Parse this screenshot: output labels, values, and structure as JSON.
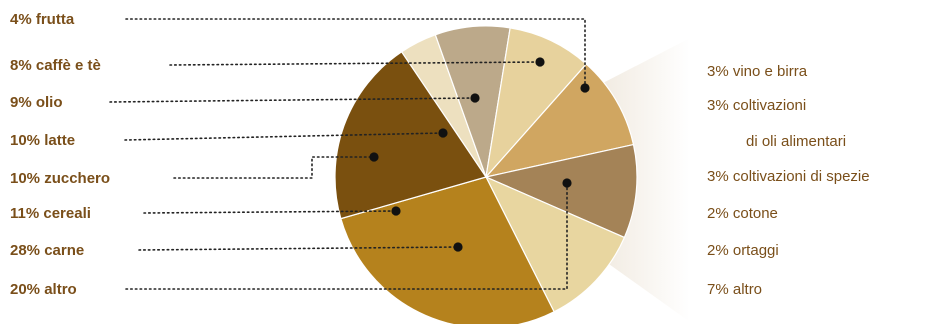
{
  "chart_data": {
    "type": "pie",
    "title": "",
    "slices": [
      {
        "label": "4% frutta",
        "value": 4,
        "color": "#ede0bf"
      },
      {
        "label": "8% caffè e tè",
        "value": 8,
        "color": "#bca98a"
      },
      {
        "label": "9% olio",
        "value": 9,
        "color": "#e7d29d"
      },
      {
        "label": "10% latte",
        "value": 10,
        "color": "#d0a661"
      },
      {
        "label": "10% zucchero",
        "value": 10,
        "color": "#a48357"
      },
      {
        "label": "11% cereali",
        "value": 11,
        "color": "#e8d6a0"
      },
      {
        "label": "28% carne",
        "value": 28,
        "color": "#b5821d"
      },
      {
        "label": "20% altro",
        "value": 20,
        "color": "#7a500f"
      }
    ],
    "exploded_slice": "20% altro",
    "breakdown_of_altro": [
      {
        "lines": [
          "3% vino e birra"
        ],
        "value": 3
      },
      {
        "lines": [
          "3% coltivazioni",
          "di oli alimentari"
        ],
        "value": 3
      },
      {
        "lines": [
          "3% coltivazioni di spezie"
        ],
        "value": 3
      },
      {
        "lines": [
          "2% cotone"
        ],
        "value": 2
      },
      {
        "lines": [
          "2% ortaggi"
        ],
        "value": 2
      },
      {
        "lines": [
          "7% altro"
        ],
        "value": 7
      }
    ],
    "colors": {
      "label_text": "#7a4f1a",
      "leader": "#222222",
      "wedge_gradient": "#c9b08a"
    }
  }
}
